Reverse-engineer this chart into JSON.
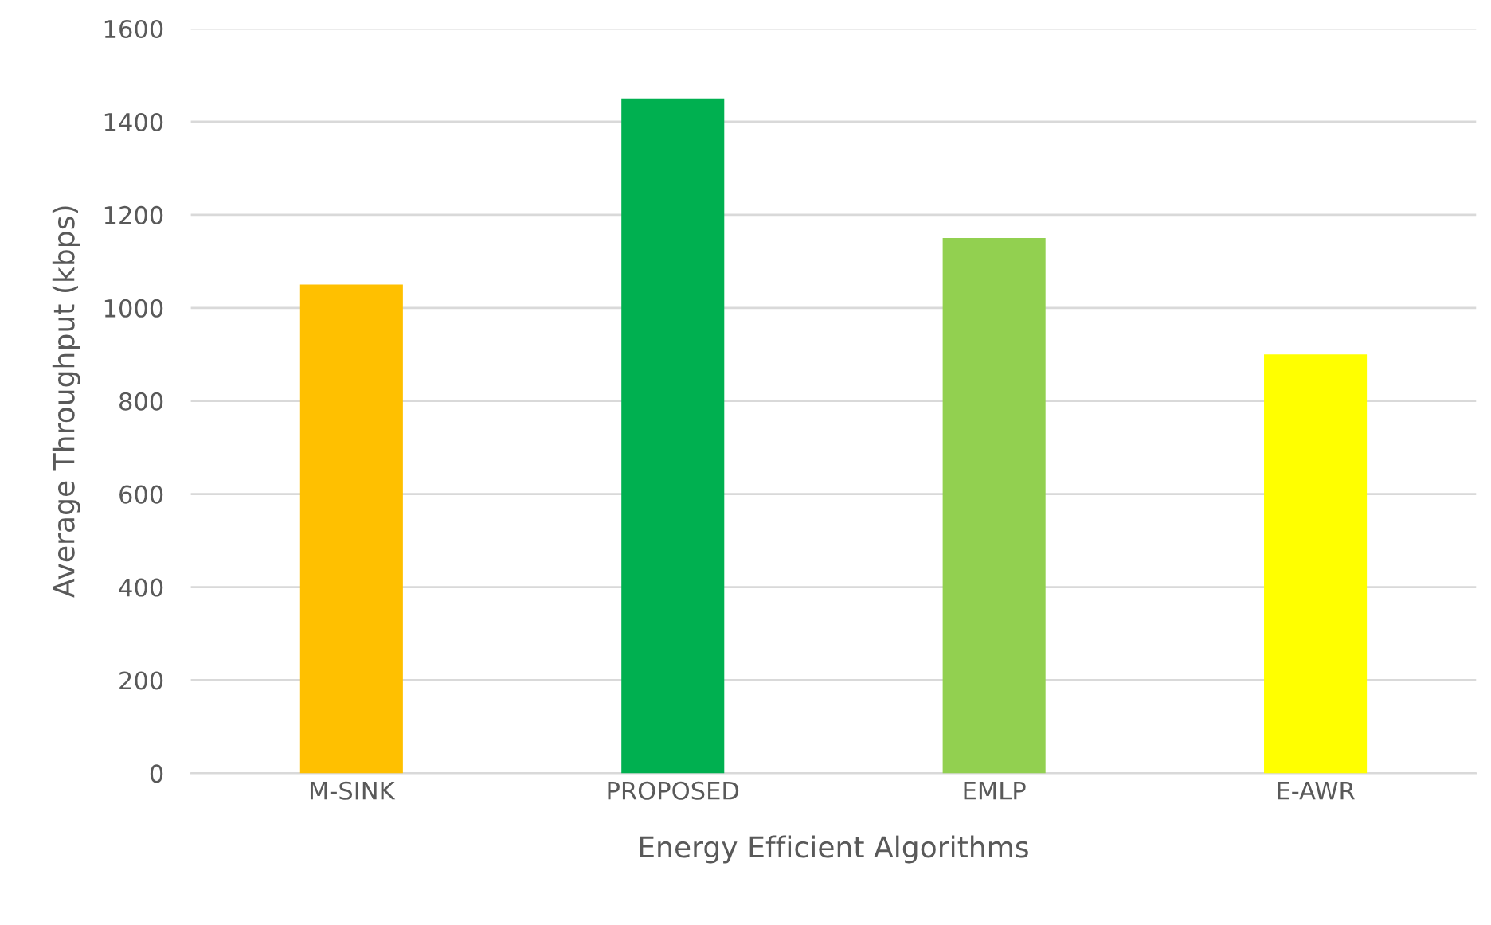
{
  "chart_data": {
    "type": "bar",
    "xlabel": "Energy Efficient Algorithms",
    "ylabel": "Average Throughput (kbps)",
    "categories": [
      "M-SINK",
      "PROPOSED",
      "EMLP",
      "E-AWR"
    ],
    "values": [
      1050,
      1450,
      1150,
      900
    ],
    "colors": [
      "#ffc000",
      "#00b050",
      "#92d050",
      "#ffff00"
    ],
    "ylim": [
      0,
      1600
    ],
    "yticks": [
      0,
      200,
      400,
      600,
      800,
      1000,
      1200,
      1400,
      1600
    ],
    "grid": "y"
  }
}
